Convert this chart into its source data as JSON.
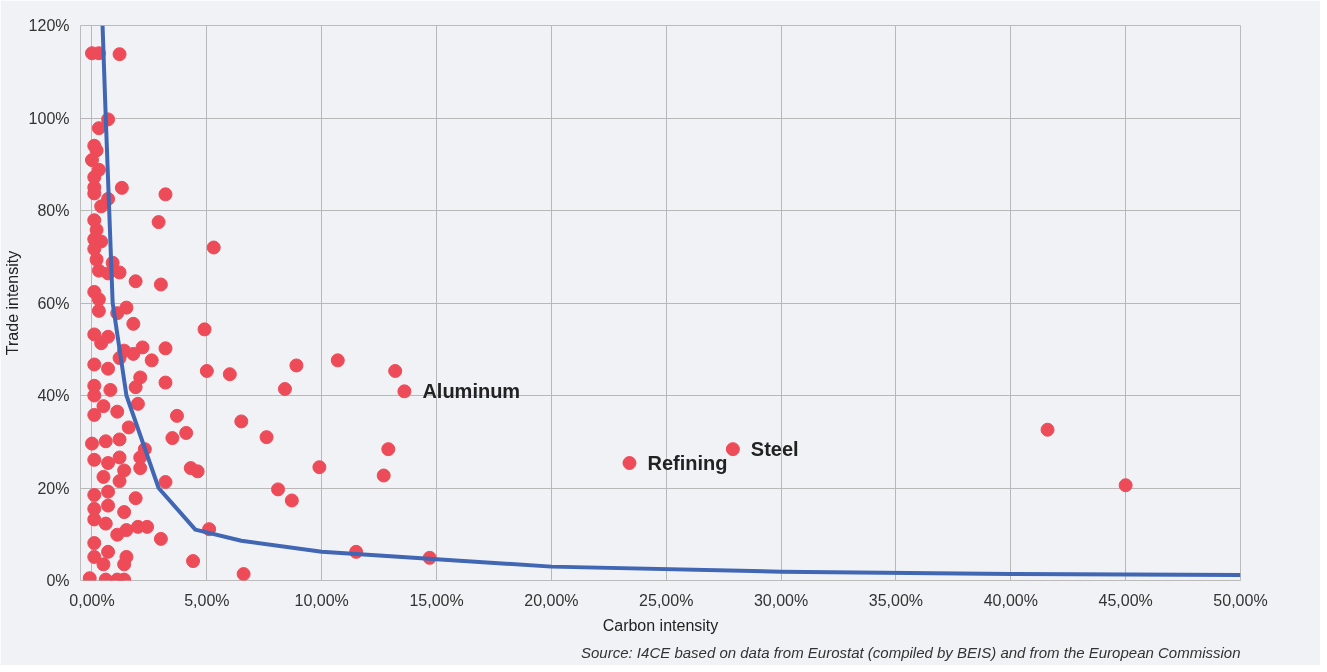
{
  "chart_data": {
    "type": "scatter",
    "xlabel": "Carbon intensity",
    "ylabel": "Trade intensity",
    "xlim": [
      -0.5,
      50
    ],
    "xticks": [
      {
        "value": 0,
        "label": "0,00%"
      },
      {
        "value": 5,
        "label": "5,00%"
      },
      {
        "value": 10,
        "label": "10,00%"
      },
      {
        "value": 15,
        "label": "15,00%"
      },
      {
        "value": 20,
        "label": "20,00%"
      },
      {
        "value": 25,
        "label": "25,00%"
      },
      {
        "value": 30,
        "label": "30,00%"
      },
      {
        "value": 35,
        "label": "35,00%"
      },
      {
        "value": 40,
        "label": "40,00%"
      },
      {
        "value": 45,
        "label": "45,00%"
      },
      {
        "value": 50,
        "label": "50,00%"
      }
    ],
    "ylim": [
      0,
      120
    ],
    "yticks": [
      {
        "value": 0,
        "label": "0%"
      },
      {
        "value": 20,
        "label": "20%"
      },
      {
        "value": 40,
        "label": "40%"
      },
      {
        "value": 60,
        "label": "60%"
      },
      {
        "value": 80,
        "label": "80%"
      },
      {
        "value": 100,
        "label": "100%"
      },
      {
        "value": 120,
        "label": "120%"
      }
    ],
    "grid": true,
    "series": [
      {
        "marker": "circle",
        "color": "#ee4b59",
        "x": [
          0,
          0.3,
          1.2,
          0.7,
          0.3,
          0.1,
          0.2,
          0,
          0.3,
          0.1,
          0.1,
          1.3,
          3.2,
          0.1,
          0.7,
          0.4,
          2.9,
          0.1,
          0.2,
          0.1,
          0.4,
          0.1,
          0.2,
          0.9,
          1.2,
          0.7,
          0.3,
          1.9,
          3.0,
          0.1,
          0.3,
          1.5,
          1.1,
          0.3,
          1.8,
          0.1,
          0.7,
          0.4,
          2.2,
          3.2,
          1.4,
          1.2,
          1.8,
          2.6,
          0.1,
          0.7,
          2.1,
          3.2,
          1.9,
          0.1,
          0.8,
          0.1,
          0.5,
          1.1,
          2.0,
          3.7,
          0.1,
          1.6,
          4.1,
          3.5,
          0,
          0.6,
          1.2,
          2.3,
          0.1,
          0.7,
          1.2,
          2.1,
          2.1,
          4.3,
          1.4,
          0.5,
          1.2,
          3.2,
          0.1,
          0.7,
          1.9,
          0.1,
          0.7,
          1.4,
          0.1,
          0.6,
          2.4,
          2.0,
          1.5,
          1.1,
          3.0,
          0.1,
          0.7,
          1.5,
          0.1,
          1.4,
          0.5,
          -0.1,
          0.6,
          1.4,
          1.1,
          5.3,
          4.9,
          5.0,
          6.0,
          8.9,
          8.4,
          10.7,
          13.2,
          13.6,
          6.5,
          7.6,
          4.6,
          9.9,
          12.9,
          12.7,
          8.1,
          8.7,
          5.1,
          4.4,
          6.6,
          11.5,
          14.7,
          23.4,
          27.9,
          41.6,
          45.0
        ],
        "values": [
          114,
          114,
          113.8,
          99.7,
          97.8,
          94,
          93,
          90.9,
          88.8,
          87.2,
          85,
          84.9,
          83.5,
          83.7,
          82.5,
          80.9,
          77.5,
          77.9,
          75.8,
          73.8,
          73.3,
          71.7,
          69.4,
          68.7,
          66.6,
          66.4,
          67,
          64.7,
          64,
          62.4,
          60.8,
          59,
          57.8,
          58.3,
          55.5,
          53.2,
          52.7,
          51.3,
          50.4,
          50.2,
          49.7,
          48.1,
          49,
          47.6,
          46.7,
          45.8,
          43.9,
          42.8,
          41.8,
          42.1,
          41.2,
          40,
          37.7,
          36.5,
          38.2,
          35.6,
          35.8,
          33.1,
          31.9,
          30.8,
          29.6,
          30.1,
          30.5,
          28.4,
          26.1,
          25.4,
          26.6,
          26.6,
          24.3,
          24.3,
          23.8,
          22.4,
          21.5,
          21.3,
          18.5,
          19.2,
          17.8,
          15.5,
          16.2,
          14.8,
          13.2,
          12.3,
          11.6,
          11.6,
          10.9,
          9.9,
          9,
          8.1,
          6.2,
          5.1,
          5.1,
          3.5,
          3.5,
          0.5,
          0.2,
          0.2,
          0.2,
          72,
          54.3,
          45.3,
          44.6,
          46.5,
          41.4,
          47.6,
          45.3,
          40.9,
          34.4,
          31,
          23.6,
          24.5,
          28.4,
          22.7,
          19.7,
          17.3,
          11.1,
          4.2,
          1.4,
          6.2,
          4.9,
          25.4,
          28.4,
          32.6,
          20.6
        ]
      },
      {
        "type": "line",
        "color": "#4166b4",
        "x": [
          0.46,
          0.6,
          0.9,
          1.5,
          2.9,
          4.5,
          6.5,
          10,
          15,
          20,
          30,
          40,
          50
        ],
        "values": [
          120,
          100,
          60,
          40,
          20,
          11,
          8.6,
          6.2,
          4.6,
          3,
          1.9,
          1.4,
          1.2
        ]
      }
    ],
    "annotations": [
      {
        "text": "Aluminum",
        "x": 13.6,
        "y": 40.9
      },
      {
        "text": "Steel",
        "x": 27.9,
        "y": 28.4
      },
      {
        "text": "Refining",
        "x": 23.4,
        "y": 25.4
      },
      "Source: I4CE based on data from Eurostat (compiled by BEIS) and from the European Commission"
    ]
  }
}
